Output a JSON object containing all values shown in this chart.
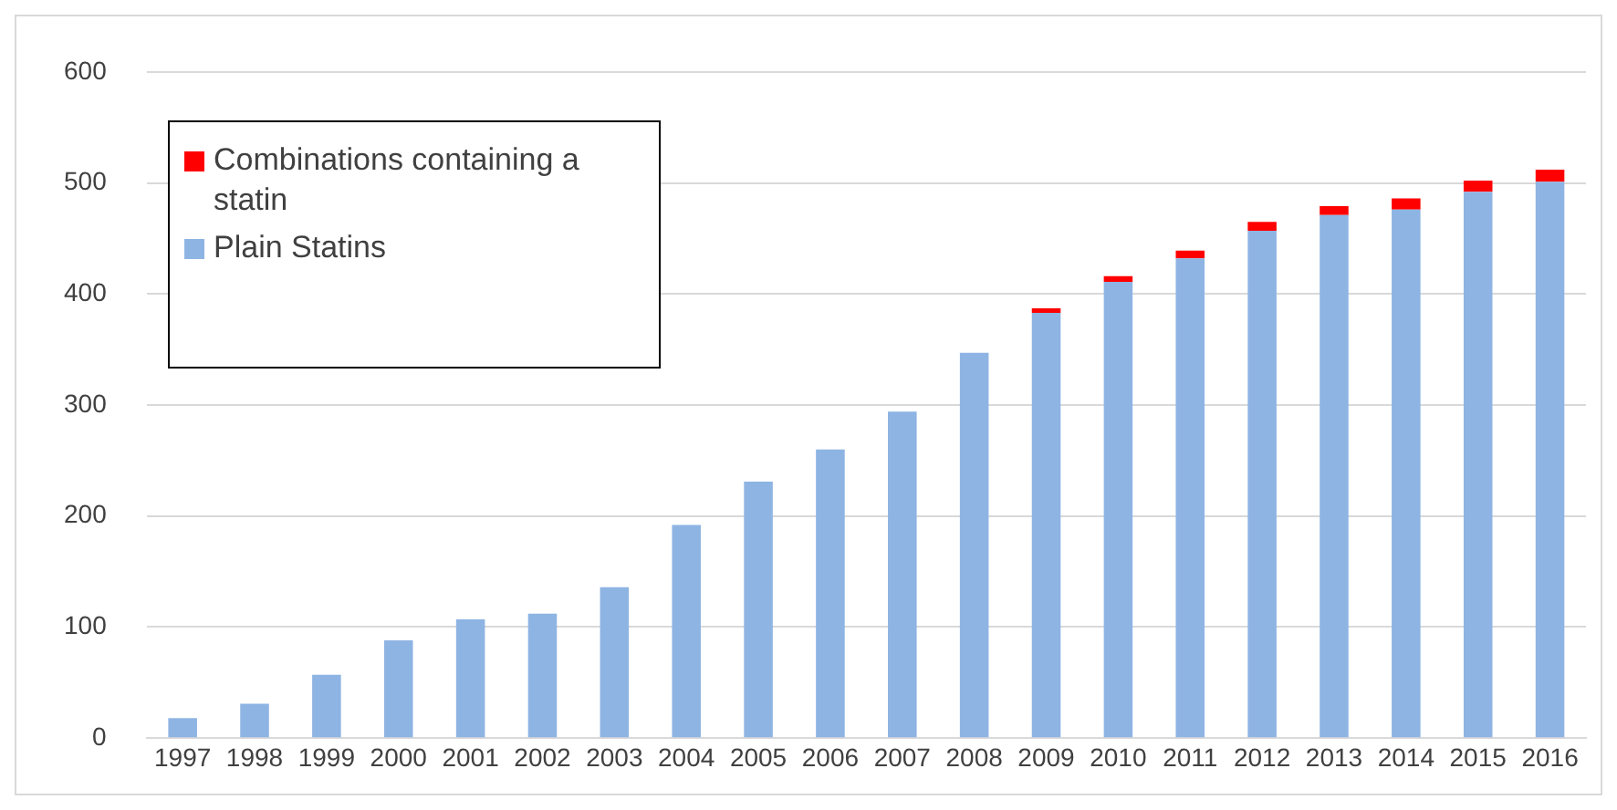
{
  "chart_data": {
    "type": "bar",
    "stacked": true,
    "categories": [
      "1997",
      "1998",
      "1999",
      "2000",
      "2001",
      "2002",
      "2003",
      "2004",
      "2005",
      "2006",
      "2007",
      "2008",
      "2009",
      "2010",
      "2011",
      "2012",
      "2013",
      "2014",
      "2015",
      "2016"
    ],
    "series": [
      {
        "name": "Plain Statins",
        "color": "#8eb4e3",
        "values": [
          18,
          31,
          57,
          88,
          107,
          112,
          136,
          192,
          231,
          260,
          294,
          347,
          383,
          411,
          432,
          457,
          471,
          476,
          492,
          501
        ]
      },
      {
        "name": "Combinations containing a statin",
        "color": "#ff0000",
        "values": [
          0,
          0,
          0,
          0,
          0,
          0,
          0,
          0,
          0,
          0,
          0,
          0,
          4,
          5,
          7,
          8,
          8,
          10,
          10,
          11
        ]
      }
    ],
    "ylim": [
      0,
      600
    ],
    "yticks": [
      0,
      100,
      200,
      300,
      400,
      500,
      600
    ],
    "grid": "y",
    "legend": "top left"
  }
}
